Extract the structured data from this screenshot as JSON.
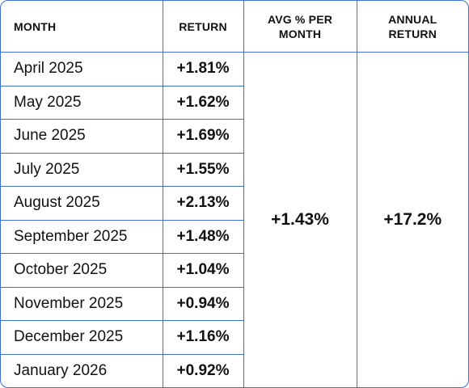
{
  "headers": {
    "month": "MONTH",
    "return": "RETURN",
    "avg_line1": "AVG % PER",
    "avg_line2": "MONTH",
    "annual_line1": "ANNUAL",
    "annual_line2": "RETURN"
  },
  "rows": [
    {
      "month": "April 2025",
      "return": "+1.81%"
    },
    {
      "month": "May 2025",
      "return": "+1.62%"
    },
    {
      "month": "June 2025",
      "return": "+1.69%"
    },
    {
      "month": "July 2025",
      "return": "+1.55%"
    },
    {
      "month": "August 2025",
      "return": "+2.13%"
    },
    {
      "month": "September 2025",
      "return": "+1.48%"
    },
    {
      "month": "October 2025",
      "return": "+1.04%"
    },
    {
      "month": "November 2025",
      "return": "+0.94%"
    },
    {
      "month": "December 2025",
      "return": "+1.16%"
    },
    {
      "month": "January 2026",
      "return": "+0.92%"
    }
  ],
  "summary": {
    "avg_per_month": "+1.43%",
    "annual_return": "+17.2%"
  },
  "colors": {
    "border": "#3f6fd6",
    "text": "#111111"
  }
}
